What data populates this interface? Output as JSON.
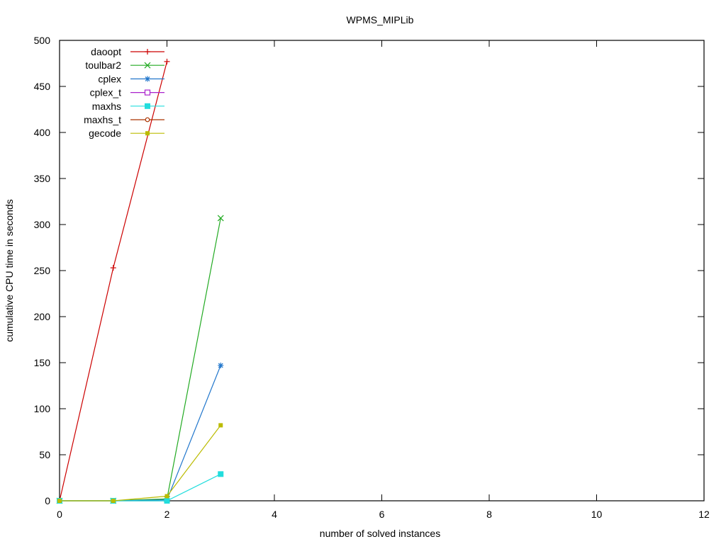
{
  "chart_data": {
    "type": "line",
    "title": "WPMS_MIPLib",
    "xlabel": "number of solved instances",
    "ylabel": "cumulative CPU time in seconds",
    "xlim": [
      0,
      12
    ],
    "ylim": [
      0,
      500
    ],
    "xticks": [
      0,
      2,
      4,
      6,
      8,
      10,
      12
    ],
    "yticks": [
      0,
      50,
      100,
      150,
      200,
      250,
      300,
      350,
      400,
      450,
      500
    ],
    "grid": false,
    "legend_position": "top-left",
    "series": [
      {
        "name": "daoopt",
        "color": "#cc0000",
        "marker": "plus",
        "x": [
          0,
          1,
          2
        ],
        "y": [
          0,
          253,
          477
        ]
      },
      {
        "name": "toulbar2",
        "color": "#22aa22",
        "marker": "cross",
        "x": [
          0,
          1,
          2,
          3
        ],
        "y": [
          0,
          0,
          2,
          307
        ]
      },
      {
        "name": "cplex",
        "color": "#2277cc",
        "marker": "star",
        "x": [
          0,
          1,
          2,
          3
        ],
        "y": [
          0,
          0,
          1,
          147
        ]
      },
      {
        "name": "cplex_t",
        "color": "#aa22cc",
        "marker": "open-square",
        "x": [],
        "y": []
      },
      {
        "name": "maxhs",
        "color": "#22dddd",
        "marker": "filled-square",
        "x": [
          0,
          1,
          2,
          3
        ],
        "y": [
          0,
          0,
          0,
          29
        ]
      },
      {
        "name": "maxhs_t",
        "color": "#aa3300",
        "marker": "open-circle",
        "x": [],
        "y": []
      },
      {
        "name": "gecode",
        "color": "#bbbb00",
        "marker": "filled-pentagon",
        "x": [
          0,
          1,
          2,
          3
        ],
        "y": [
          0,
          0,
          5,
          82
        ]
      }
    ]
  }
}
